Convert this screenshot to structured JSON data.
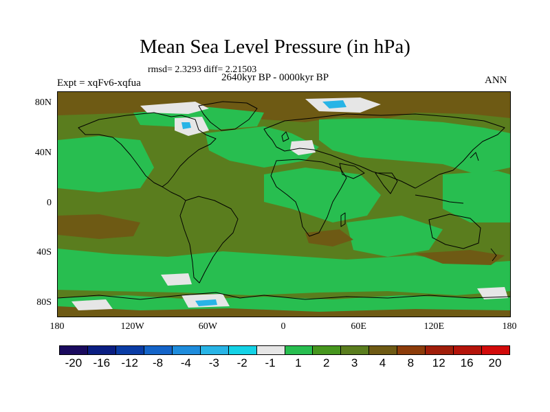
{
  "title": "Mean Sea Level Pressure (in hPa)",
  "stats": "rmsd= 2.3293 diff= 2.21503",
  "experiment": "Expt = xqFv6-xqfua",
  "period": "2640kyr BP - 0000kyr BP",
  "season": "ANN",
  "y_axis": {
    "ticks": [
      {
        "lat": 80,
        "label": "80N"
      },
      {
        "lat": 40,
        "label": "40N"
      },
      {
        "lat": 0,
        "label": "0"
      },
      {
        "lat": -40,
        "label": "40S"
      },
      {
        "lat": -80,
        "label": "80S"
      }
    ]
  },
  "x_axis": {
    "ticks": [
      {
        "lon": -180,
        "label": "180"
      },
      {
        "lon": -120,
        "label": "120W"
      },
      {
        "lon": -60,
        "label": "60W"
      },
      {
        "lon": 0,
        "label": "0"
      },
      {
        "lon": 60,
        "label": "60E"
      },
      {
        "lon": 120,
        "label": "120E"
      },
      {
        "lon": 180,
        "label": "180"
      }
    ]
  },
  "colorbar": {
    "colors": [
      "#1a0a5e",
      "#0a1e82",
      "#0a3ca5",
      "#1464c8",
      "#1e8cdc",
      "#28b4e6",
      "#14d2e6",
      "#e6e6e6",
      "#28be50",
      "#46961e",
      "#5a7d1e",
      "#6e5a14",
      "#8c3c0a",
      "#a01e0a",
      "#b4140a",
      "#d20a0a"
    ],
    "labels": [
      "-20",
      "-16",
      "-12",
      "-8",
      "-4",
      "-3",
      "-2",
      "-1",
      "1",
      "2",
      "3",
      "4",
      "8",
      "12",
      "16",
      "20"
    ]
  },
  "map": {
    "domain": {
      "lon_min": -180,
      "lon_max": 180,
      "lat_min": -90,
      "lat_max": 90
    },
    "background_color": "#5a7d1e",
    "field_colors": {
      "dark": "#6e5a14",
      "olive": "#5a7d1e",
      "green": "#28be50",
      "light": "#e6e6e6",
      "cyan": "#28b4e6",
      "blue": "#1e8cdc"
    }
  }
}
